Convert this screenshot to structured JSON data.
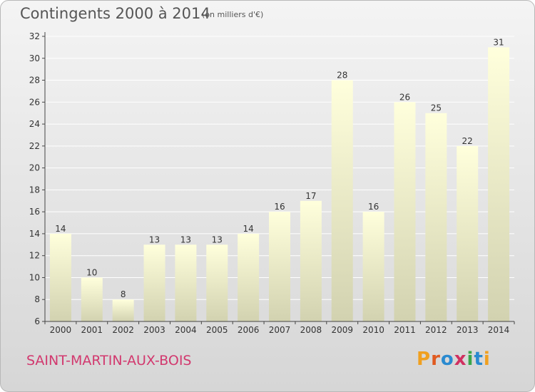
{
  "header": {
    "title": "Contingents 2000 à 2014",
    "unit": "(en milliers d'€)"
  },
  "footer": {
    "place": "SAINT-MARTIN-AUX-BOIS",
    "logo_text": "Proxiti",
    "logo_colors": [
      "#f0a020",
      "#e05a20",
      "#2a8ad0",
      "#d03060",
      "#3aa64a",
      "#2a8ad0",
      "#f0a020"
    ]
  },
  "colors": {
    "bar_top": "#ffffdc",
    "bar_bottom": "#d2d2b0",
    "grid": "#ffffff",
    "axis": "#444444",
    "label": "#333333",
    "place": "#d2386e"
  },
  "chart_data": {
    "type": "bar",
    "categories": [
      "2000",
      "2001",
      "2002",
      "2003",
      "2004",
      "2005",
      "2006",
      "2007",
      "2008",
      "2009",
      "2010",
      "2011",
      "2012",
      "2013",
      "2014"
    ],
    "values": [
      14,
      10,
      8,
      13,
      13,
      13,
      14,
      16,
      17,
      28,
      16,
      26,
      25,
      22,
      31
    ],
    "data_labels": [
      "14",
      "10",
      "8",
      "13",
      "13",
      "13",
      "14",
      "16",
      "17",
      "28",
      "16",
      "26",
      "25",
      "22",
      "31"
    ],
    "yticks": [
      6,
      8,
      10,
      12,
      14,
      16,
      18,
      20,
      22,
      24,
      26,
      28,
      30,
      32
    ],
    "ylim": [
      6,
      32
    ],
    "grid": true,
    "xlabel": "",
    "ylabel": ""
  }
}
